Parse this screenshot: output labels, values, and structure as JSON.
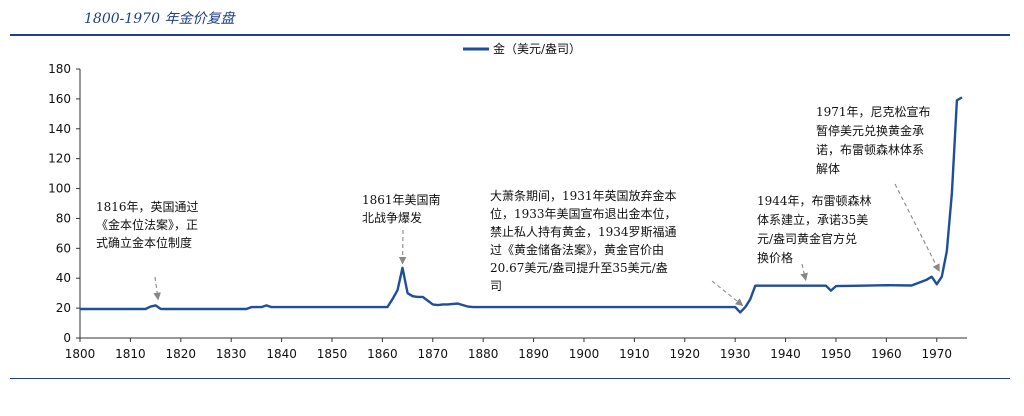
{
  "title": "1800-1970 年金价复盘",
  "colors": {
    "accent": "#1f3e8c",
    "series": "#1f4e9a",
    "arrow": "#888888"
  },
  "chart_data": {
    "type": "line",
    "title": "1800-1970 年金价复盘",
    "xlabel": "",
    "ylabel": "",
    "xlim": [
      1800,
      1976
    ],
    "ylim": [
      0,
      180
    ],
    "x_ticks": [
      1800,
      1810,
      1820,
      1830,
      1840,
      1850,
      1860,
      1870,
      1880,
      1890,
      1900,
      1910,
      1920,
      1930,
      1940,
      1950,
      1960,
      1970
    ],
    "y_ticks": [
      0,
      20,
      40,
      60,
      80,
      100,
      120,
      140,
      160,
      180
    ],
    "grid": false,
    "legend": "top-center",
    "series": [
      {
        "name": "金（美元/盎司）",
        "x": [
          1800,
          1813,
          1814,
          1815,
          1816,
          1817,
          1833,
          1834,
          1836,
          1837,
          1838,
          1860,
          1861,
          1862,
          1863,
          1864,
          1865,
          1866,
          1867,
          1868,
          1869,
          1870,
          1871,
          1872,
          1873,
          1874,
          1875,
          1876,
          1877,
          1878,
          1879,
          1930,
          1931,
          1932,
          1933,
          1934,
          1935,
          1940,
          1948,
          1949,
          1950,
          1955,
          1960,
          1965,
          1968,
          1969,
          1970,
          1971,
          1972,
          1973,
          1974,
          1975
        ],
        "values": [
          19.4,
          19.4,
          21,
          21.8,
          19.5,
          19.4,
          19.4,
          20.7,
          20.7,
          21.8,
          20.7,
          20.7,
          20.7,
          26,
          32,
          47,
          30,
          28,
          27.5,
          27.5,
          25,
          22.5,
          22,
          22.5,
          22.5,
          22.8,
          23,
          22,
          21,
          20.7,
          20.7,
          20.7,
          17.1,
          20.7,
          26,
          35,
          35,
          35,
          35,
          31.7,
          34.7,
          35,
          35.3,
          35.1,
          39,
          41,
          36,
          41,
          58,
          97,
          159,
          161
        ]
      }
    ],
    "annotations": [
      {
        "lines": [
          "1816年，英国通过",
          "《金本位法案》，正",
          "式确立金本位制度"
        ],
        "arrow_to": [
          1815.5,
          23
        ]
      },
      {
        "lines": [
          "1861年美国南",
          "北战争爆发"
        ],
        "arrow_to": [
          1864,
          47
        ]
      },
      {
        "lines": [
          "大萧条期间，1931年英国放弃金本",
          "位，1933年美国宣布退出金本位，",
          "禁止私人持有黄金，1934罗斯福通",
          "过《黄金储备法案》，黄金官价由",
          "20.67美元/盎司提升至35美元/盎",
          "司"
        ],
        "arrow_to": [
          1931.5,
          19
        ]
      },
      {
        "lines": [
          "1944年，布雷顿森林",
          "体系建立，承诺35美",
          "元/盎司黄金官方兑",
          "换价格"
        ],
        "arrow_to": [
          1944,
          36
        ]
      },
      {
        "lines": [
          "1971年，尼克松宣布",
          "暂停美元兑换黄金承",
          "诺，布雷顿森林体系",
          "解体"
        ],
        "arrow_to": [
          1970.5,
          42
        ]
      }
    ]
  }
}
